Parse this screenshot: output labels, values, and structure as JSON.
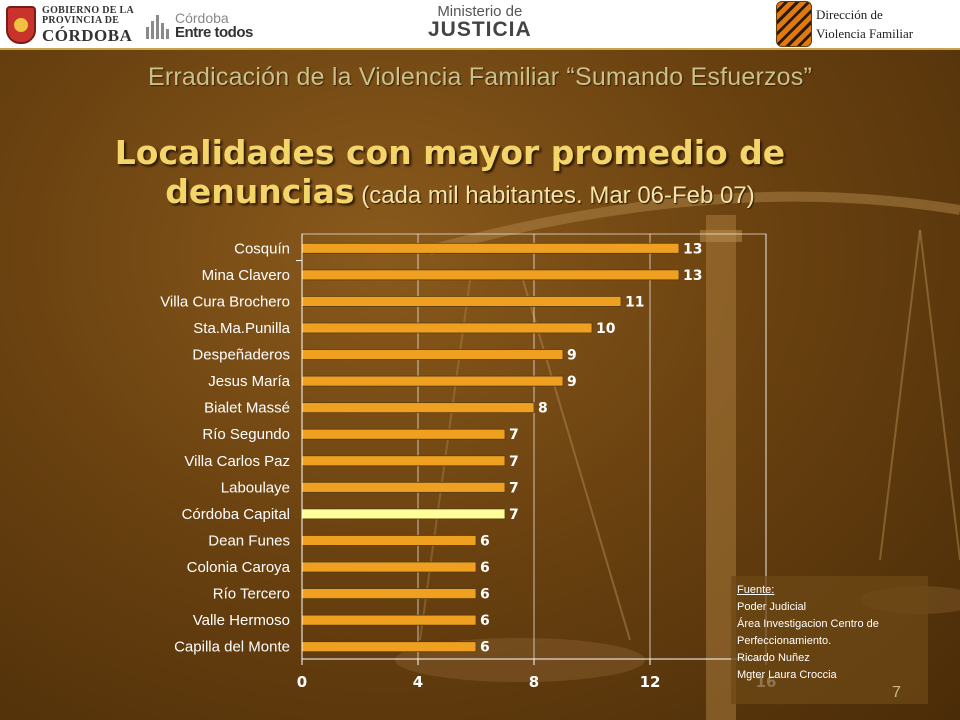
{
  "header": {
    "gobierno": {
      "line1": "GOBIERNO DE LA",
      "line2": "PROVINCIA DE",
      "line3": "CÓRDOBA"
    },
    "cordoba": {
      "line1": "Córdoba",
      "line2": "Entre todos"
    },
    "ministerio": {
      "line1": "Ministerio de",
      "line2": "JUSTICIA"
    },
    "direccion": {
      "line1": "Dirección de",
      "line2": "Violencia Familiar"
    }
  },
  "subtitle": "Erradicación de la Violencia Familiar “Sumando Esfuerzos”",
  "title": {
    "line1": "Localidades con mayor promedio de",
    "line2_strong": "denuncias",
    "line2_paren": " (cada mil habitantes. Mar 06-Feb 07)"
  },
  "chart_data": {
    "type": "bar",
    "orientation": "horizontal",
    "categories": [
      "Cosquín",
      "Mina Clavero",
      "Villa Cura Brochero",
      "Sta.Ma.Punilla",
      "Despeñaderos",
      "Jesus María",
      "Bialet Massé",
      "Río Segundo",
      "Villa Carlos Paz",
      "Laboulaye",
      "Córdoba Capital",
      "Dean Funes",
      "Colonia Caroya",
      "Río Tercero",
      "Valle Hermoso",
      "Capilla del Monte"
    ],
    "values": [
      13,
      13,
      11,
      10,
      9,
      9,
      8,
      7,
      7,
      7,
      7,
      6,
      6,
      6,
      6,
      6
    ],
    "highlight_category": "Córdoba Capital",
    "xlim": [
      0,
      16
    ],
    "xticks": [
      0,
      4,
      8,
      12,
      16
    ],
    "colors": {
      "bar": "#f0a020",
      "bar_highlight": "#ffff99",
      "bar_edge": "#5a3a10"
    }
  },
  "source": {
    "heading": "Fuente:",
    "lines": [
      "Poder Judicial",
      "Área Investigacion Centro de",
      "Perfeccionamiento.",
      "Ricardo Nuñez",
      "Mgter Laura Croccia"
    ]
  },
  "slide_number": "7"
}
